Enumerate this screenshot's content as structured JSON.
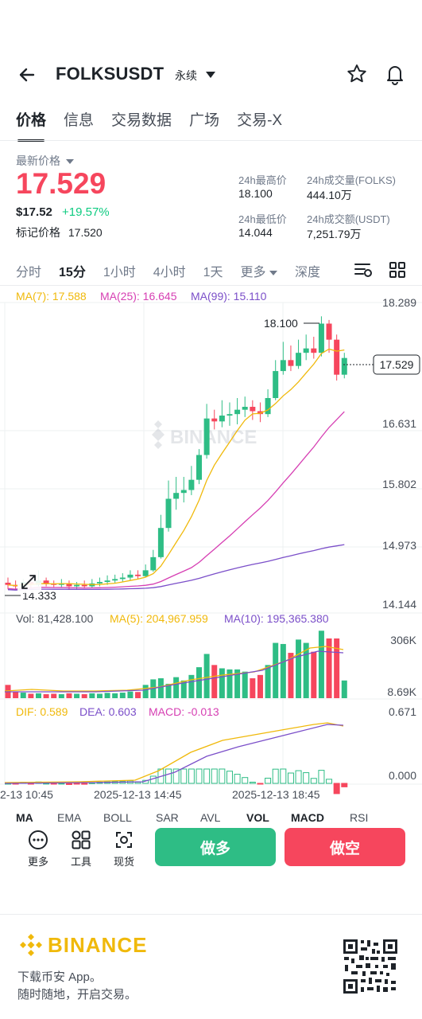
{
  "header": {
    "symbol": "FOLKSUSDT",
    "contract_type": "永续",
    "icons": [
      "back-arrow-icon",
      "caret-down-icon",
      "star-icon",
      "bell-icon"
    ]
  },
  "tabs": [
    {
      "label": "价格",
      "active": true
    },
    {
      "label": "信息",
      "active": false
    },
    {
      "label": "交易数据",
      "active": false
    },
    {
      "label": "广场",
      "active": false
    },
    {
      "label": "交易-X",
      "active": false
    }
  ],
  "price": {
    "label": "最新价格",
    "last": "17.529",
    "usd": "$17.52",
    "change": "+19.57%",
    "mark_label": "标记价格",
    "mark_value": "17.520"
  },
  "stats": {
    "high_label": "24h最高价",
    "high_value": "18.100",
    "low_label": "24h最低价",
    "low_value": "14.044",
    "vol_label": "24h成交量(FOLKS)",
    "vol_value": "444.10万",
    "amt_label": "24h成交额(USDT)",
    "amt_value": "7,251.79万"
  },
  "intervals": [
    {
      "label": "分时",
      "active": false
    },
    {
      "label": "15分",
      "active": true
    },
    {
      "label": "1小时",
      "active": false
    },
    {
      "label": "4小时",
      "active": false
    },
    {
      "label": "1天",
      "active": false
    },
    {
      "label": "更多",
      "active": false
    },
    {
      "label": "深度",
      "active": false
    }
  ],
  "chart": {
    "ma_legend": {
      "ma7": "MA(7): 17.588",
      "ma25": "MA(25): 16.645",
      "ma99": "MA(99): 15.110"
    },
    "price_axis": [
      "18.289",
      "16.631",
      "15.802",
      "14.973",
      "14.144"
    ],
    "current_price_tag": "17.529",
    "high_label": "18.100",
    "low_label": "14.333",
    "watermark": "BINANCE",
    "vol_legend": {
      "vol": "Vol: 81,428.100",
      "ma5": "MA(5): 204,967.959",
      "ma10": "MA(10): 195,365.380"
    },
    "vol_axis": [
      "306K",
      "8.69K"
    ],
    "macd_legend": {
      "dif": "DIF: 0.589",
      "dea": "DEA: 0.603",
      "macd": "MACD: -0.013"
    },
    "macd_axis": [
      "0.671",
      "0.000"
    ],
    "time_axis": [
      "2-13 10:45",
      "2025-12-13 14:45",
      "2025-12-13 18:45"
    ],
    "indicators": [
      "MA",
      "EMA",
      "BOLL",
      "SAR",
      "AVL",
      "VOL",
      "MACD",
      "RSI"
    ],
    "colors": {
      "up": "#2ebd85",
      "down": "#f6465d",
      "ma7": "#f0b90b",
      "ma25": "#d63fb3",
      "ma99": "#7b4fc9"
    }
  },
  "chart_data": {
    "type": "candlestick",
    "interval": "15m",
    "ylim": [
      14.144,
      18.289
    ],
    "candles": [
      [
        14.45,
        14.42,
        14.52,
        14.36
      ],
      [
        14.42,
        14.4,
        14.48,
        14.35
      ],
      [
        14.4,
        14.46,
        14.5,
        14.36
      ],
      [
        14.46,
        14.42,
        14.55,
        14.38
      ],
      [
        14.42,
        14.48,
        14.62,
        14.4
      ],
      [
        14.48,
        14.44,
        14.52,
        14.4
      ],
      [
        14.44,
        14.42,
        14.48,
        14.38
      ],
      [
        14.42,
        14.44,
        14.5,
        14.38
      ],
      [
        14.44,
        14.4,
        14.48,
        14.36
      ],
      [
        14.4,
        14.42,
        14.46,
        14.36
      ],
      [
        14.42,
        14.4,
        14.48,
        14.37
      ],
      [
        14.4,
        14.44,
        14.5,
        14.38
      ],
      [
        14.44,
        14.46,
        14.52,
        14.4
      ],
      [
        14.46,
        14.48,
        14.55,
        14.42
      ],
      [
        14.48,
        14.5,
        14.56,
        14.44
      ],
      [
        14.5,
        14.52,
        14.58,
        14.46
      ],
      [
        14.52,
        14.56,
        14.62,
        14.48
      ],
      [
        14.56,
        14.54,
        14.62,
        14.5
      ],
      [
        14.54,
        14.62,
        14.7,
        14.52
      ],
      [
        14.62,
        14.8,
        14.9,
        14.6
      ],
      [
        14.8,
        15.2,
        15.38,
        14.78
      ],
      [
        15.2,
        15.6,
        15.85,
        15.15
      ],
      [
        15.6,
        15.68,
        15.9,
        15.45
      ],
      [
        15.68,
        15.72,
        15.9,
        15.55
      ],
      [
        15.72,
        15.86,
        16.05,
        15.65
      ],
      [
        15.86,
        16.2,
        16.28,
        15.8
      ],
      [
        16.2,
        16.7,
        16.9,
        16.15
      ],
      [
        16.7,
        16.66,
        16.82,
        16.55
      ],
      [
        16.66,
        16.74,
        16.95,
        16.58
      ],
      [
        16.74,
        16.76,
        16.92,
        16.6
      ],
      [
        16.76,
        16.82,
        16.98,
        16.62
      ],
      [
        16.82,
        16.86,
        17.0,
        16.72
      ],
      [
        16.86,
        16.8,
        16.95,
        16.68
      ],
      [
        16.8,
        16.76,
        16.92,
        16.65
      ],
      [
        16.76,
        16.98,
        17.1,
        16.72
      ],
      [
        16.98,
        17.35,
        17.5,
        16.95
      ],
      [
        17.35,
        17.5,
        17.75,
        17.3
      ],
      [
        17.5,
        17.42,
        17.7,
        17.35
      ],
      [
        17.42,
        17.6,
        17.78,
        17.38
      ],
      [
        17.6,
        17.66,
        17.85,
        17.5
      ],
      [
        17.66,
        17.6,
        17.82,
        17.52
      ],
      [
        17.6,
        18.0,
        18.1,
        17.55
      ],
      [
        18.0,
        17.78,
        18.05,
        17.6
      ],
      [
        17.78,
        17.3,
        17.85,
        17.22
      ],
      [
        17.3,
        17.529,
        17.6,
        17.25
      ]
    ],
    "volumes": [
      60,
      30,
      25,
      20,
      22,
      18,
      20,
      18,
      22,
      20,
      18,
      22,
      20,
      24,
      22,
      25,
      30,
      28,
      60,
      85,
      90,
      65,
      95,
      80,
      105,
      140,
      200,
      150,
      135,
      130,
      130,
      120,
      90,
      105,
      150,
      250,
      245,
      205,
      265,
      250,
      210,
      305,
      270,
      270,
      80
    ]
  },
  "actions": {
    "more_label": "更多",
    "tools_label": "工具",
    "spot_label": "现货",
    "long_label": "做多",
    "short_label": "做空"
  },
  "footer": {
    "brand": "BINANCE",
    "line1": "下载币安 App。",
    "line2": "随时随地，开启交易。"
  }
}
